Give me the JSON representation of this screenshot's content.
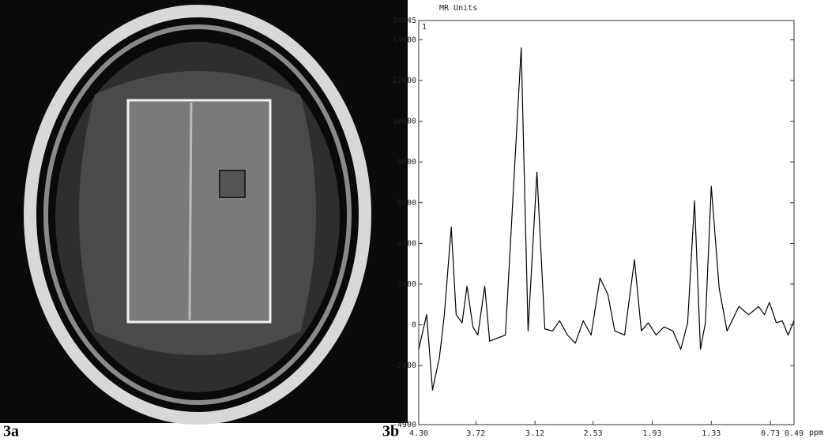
{
  "panel_labels": [
    "3a",
    "3b"
  ],
  "chart_data": {
    "type": "line",
    "y_label": "MR Units",
    "x_label": "ppm",
    "annotation": "1",
    "color": "#000000",
    "x": [
      4.3,
      4.22,
      4.16,
      4.09,
      4.04,
      3.97,
      3.92,
      3.86,
      3.81,
      3.75,
      3.7,
      3.63,
      3.58,
      3.42,
      3.26,
      3.19,
      3.1,
      3.02,
      2.94,
      2.87,
      2.79,
      2.71,
      2.63,
      2.55,
      2.46,
      2.38,
      2.31,
      2.21,
      2.11,
      2.04,
      1.97,
      1.89,
      1.81,
      1.72,
      1.64,
      1.57,
      1.5,
      1.44,
      1.39,
      1.33,
      1.25,
      1.17,
      1.05,
      0.95,
      0.85,
      0.79,
      0.74,
      0.67,
      0.61,
      0.55,
      0.49
    ],
    "values": [
      -1200,
      500,
      -3200,
      -1600,
      500,
      4800,
      500,
      100,
      1900,
      -100,
      -500,
      1900,
      -800,
      -500,
      13600,
      -300,
      7500,
      -200,
      -300,
      200,
      -500,
      -900,
      200,
      -500,
      2300,
      1500,
      -300,
      -500,
      3200,
      -300,
      100,
      -500,
      -100,
      -300,
      -1200,
      100,
      6100,
      -1200,
      100,
      6800,
      1800,
      -300,
      900,
      500,
      900,
      500,
      1100,
      100,
      200,
      -500,
      200
    ],
    "xlim": [
      4.3,
      0.49
    ],
    "xticks": [
      {
        "value": 4.3,
        "label": "4.30"
      },
      3.72,
      3.12,
      2.53,
      1.93,
      1.33,
      0.73,
      0.49
    ],
    "ylim": [
      -4900,
      14945
    ],
    "yticks": [
      -4900,
      -2000,
      0,
      2000,
      4000,
      6000,
      8000,
      10000,
      12000,
      14000,
      14945
    ]
  }
}
